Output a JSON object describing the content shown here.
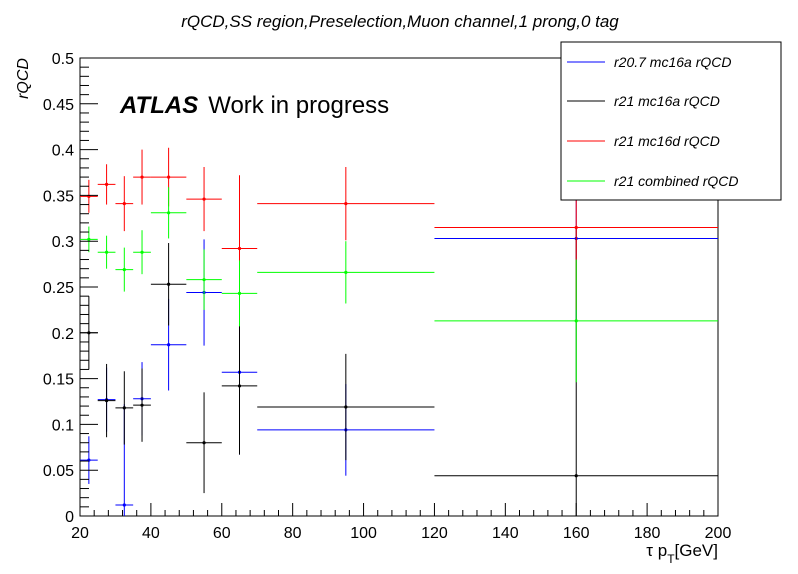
{
  "chart_data": {
    "type": "scatter",
    "title": "rQCD,SS region,Preselection,Muon channel,1 prong,0 tag",
    "xlabel": "τ p_T[GeV]",
    "xlabel_parts": {
      "main": "τ p",
      "sub": "T",
      "unit": "[GeV]"
    },
    "ylabel": "rQCD",
    "xlim": [
      20,
      200
    ],
    "ylim": [
      0,
      0.5
    ],
    "x_ticks": [
      20,
      40,
      60,
      80,
      100,
      120,
      140,
      160,
      180,
      200
    ],
    "x_tick_labels": [
      "20",
      "40",
      "60",
      "80",
      "100",
      "120",
      "140",
      "160",
      "180",
      "200"
    ],
    "y_ticks": [
      0,
      0.05,
      0.1,
      0.15,
      0.2,
      0.25,
      0.3,
      0.35,
      0.4,
      0.45,
      0.5
    ],
    "y_tick_labels": [
      "0",
      "0.05",
      "0.1",
      "0.15",
      "0.2",
      "0.25",
      "0.3",
      "0.35",
      "0.4",
      "0.45",
      "0.5"
    ],
    "grid": false,
    "legend_position": "top-right",
    "annotation": {
      "bold": "ATLAS",
      "text": "Work in progress"
    },
    "bins": [
      [
        20,
        25
      ],
      [
        25,
        30
      ],
      [
        30,
        35
      ],
      [
        35,
        40
      ],
      [
        40,
        50
      ],
      [
        50,
        60
      ],
      [
        60,
        70
      ],
      [
        70,
        120
      ],
      [
        120,
        200
      ]
    ],
    "series": [
      {
        "name": "r20.7 mc16a rQCD",
        "color": "#0000ff",
        "points": [
          {
            "x": 22.5,
            "y": 0.061,
            "err": 0.026
          },
          {
            "x": 27.5,
            "y": 0.127,
            "err": 0.035
          },
          {
            "x": 32.5,
            "y": 0.012,
            "err": 0.11
          },
          {
            "x": 37.5,
            "y": 0.128,
            "err": 0.04
          },
          {
            "x": 45,
            "y": 0.187,
            "err": 0.05
          },
          {
            "x": 55,
            "y": 0.244,
            "err": 0.058
          },
          {
            "x": 65,
            "y": 0.157,
            "err": 0.09
          },
          {
            "x": 95,
            "y": 0.094,
            "err": 0.05
          },
          {
            "x": 160,
            "y": 0.303,
            "err": 0.09
          }
        ]
      },
      {
        "name": "r21 mc16a rQCD",
        "color": "#000000",
        "points": [
          {
            "x": 22.5,
            "y": 0.2,
            "err": 0.04
          },
          {
            "x": 27.5,
            "y": 0.126,
            "err": 0.04
          },
          {
            "x": 32.5,
            "y": 0.118,
            "err": 0.04
          },
          {
            "x": 37.5,
            "y": 0.121,
            "err": 0.04
          },
          {
            "x": 45,
            "y": 0.253,
            "err": 0.045
          },
          {
            "x": 55,
            "y": 0.08,
            "err": 0.055
          },
          {
            "x": 65,
            "y": 0.142,
            "err": 0.075
          },
          {
            "x": 95,
            "y": 0.119,
            "err": 0.058
          },
          {
            "x": 160,
            "y": 0.044,
            "err": 0.27
          }
        ]
      },
      {
        "name": "r21 mc16d rQCD",
        "color": "#ff0000",
        "points": [
          {
            "x": 22.5,
            "y": 0.349,
            "err": 0.018
          },
          {
            "x": 27.5,
            "y": 0.362,
            "err": 0.022
          },
          {
            "x": 32.5,
            "y": 0.341,
            "err": 0.03
          },
          {
            "x": 37.5,
            "y": 0.37,
            "err": 0.03
          },
          {
            "x": 45,
            "y": 0.37,
            "err": 0.032
          },
          {
            "x": 55,
            "y": 0.346,
            "err": 0.035
          },
          {
            "x": 65,
            "y": 0.292,
            "err": 0.08
          },
          {
            "x": 95,
            "y": 0.341,
            "err": 0.04
          },
          {
            "x": 160,
            "y": 0.315,
            "err": 0.09
          }
        ]
      },
      {
        "name": "r21 combined rQCD",
        "color": "#00ff00",
        "points": [
          {
            "x": 22.5,
            "y": 0.302,
            "err": 0.014
          },
          {
            "x": 27.5,
            "y": 0.288,
            "err": 0.018
          },
          {
            "x": 32.5,
            "y": 0.269,
            "err": 0.024
          },
          {
            "x": 37.5,
            "y": 0.288,
            "err": 0.024
          },
          {
            "x": 45,
            "y": 0.331,
            "err": 0.028
          },
          {
            "x": 55,
            "y": 0.258,
            "err": 0.033
          },
          {
            "x": 65,
            "y": 0.243,
            "err": 0.036
          },
          {
            "x": 95,
            "y": 0.266,
            "err": 0.034
          },
          {
            "x": 160,
            "y": 0.213,
            "err": 0.067
          }
        ]
      }
    ]
  }
}
